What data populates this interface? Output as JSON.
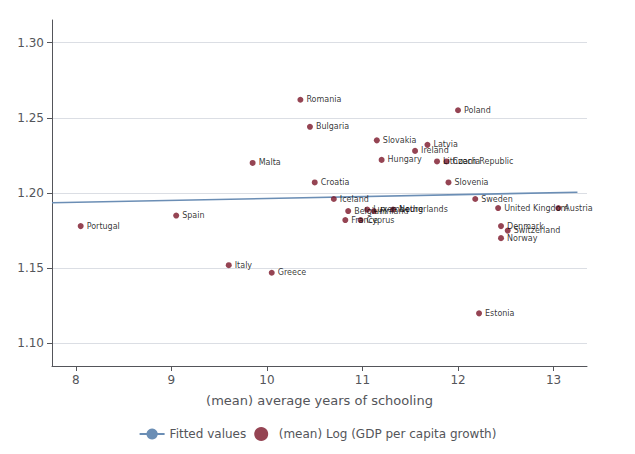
{
  "chart_data": {
    "type": "scatter",
    "xlabel": "(mean) average years of schooling",
    "xlim": [
      7.75,
      13.35
    ],
    "ylim": [
      1.085,
      1.315
    ],
    "xticks": [
      8,
      9,
      10,
      11,
      12,
      13
    ],
    "yticks": [
      {
        "value": 1.1,
        "label": "1.10"
      },
      1.15,
      {
        "value": 1.2,
        "label": "1.20"
      },
      1.25,
      {
        "value": 1.3,
        "label": "1.30"
      }
    ],
    "grid": "y",
    "legend": "bottom",
    "series": [
      {
        "name": "Fitted values",
        "type": "line",
        "color": "#6b8eb5",
        "x": [
          7.75,
          13.25
        ],
        "values": [
          1.1935,
          1.2005
        ]
      },
      {
        "name": "(mean) Log (GDP per capita growth)",
        "type": "scatter",
        "color": "#7b1528",
        "x": [
          8.05,
          9.05,
          9.6,
          10.05,
          9.85,
          10.35,
          10.45,
          10.5,
          10.7,
          10.85,
          10.82,
          10.98,
          11.05,
          11.12,
          11.15,
          11.2,
          11.32,
          11.55,
          11.68,
          11.78,
          11.88,
          11.9,
          12.0,
          12.18,
          12.42,
          12.45,
          12.52,
          12.45,
          12.22,
          13.05
        ],
        "values": [
          1.178,
          1.185,
          1.152,
          1.147,
          1.22,
          1.262,
          1.244,
          1.207,
          1.196,
          1.188,
          1.182,
          1.182,
          1.189,
          1.188,
          1.235,
          1.222,
          1.189,
          1.228,
          1.232,
          1.221,
          1.221,
          1.207,
          1.255,
          1.196,
          1.19,
          1.178,
          1.175,
          1.17,
          1.12,
          1.19
        ],
        "labels": [
          "Portugal",
          "Spain",
          "Italy",
          "Greece",
          "Malta",
          "Romania",
          "Bulgaria",
          "Croatia",
          "Iceland",
          "Belgium",
          "France",
          "Cyprus",
          "Luxembourg",
          "Finland",
          "Slovakia",
          "Hungary",
          "Netherlands",
          "Ireland",
          "Latvia",
          "Lithuania",
          "Czech Republic",
          "Slovenia",
          "Poland",
          "Sweden",
          "United Kingdom",
          "Denmark",
          "Switzerland",
          "Norway",
          "Estonia",
          "Austria"
        ]
      }
    ]
  }
}
